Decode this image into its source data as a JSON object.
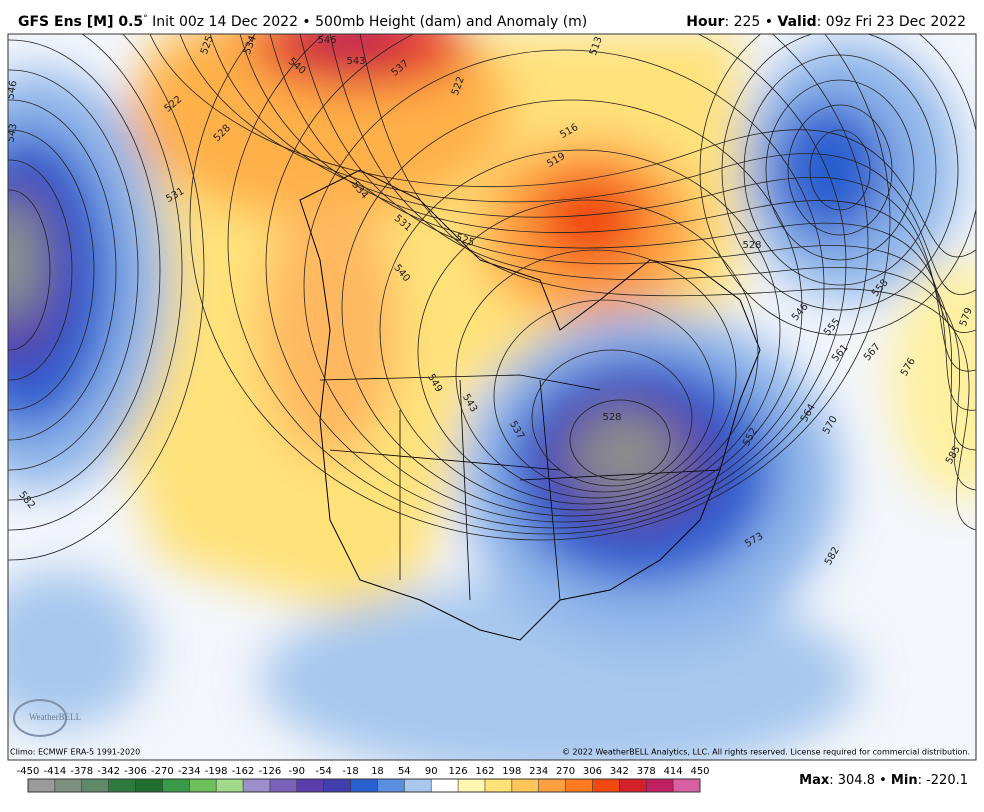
{
  "header": {
    "left": [
      "GFS Ens [M] 0.5",
      "°",
      " Init 00z 14 Dec 2022 • 500mb Height (dam) and Anomaly (m)"
    ],
    "right": [
      "Hour",
      ": 225 • ",
      "Valid",
      ": 09z Fri 23 Dec 2022"
    ]
  },
  "map": {
    "contour_labels": [
      "525",
      "534",
      "546",
      "543",
      "540",
      "537",
      "522",
      "528",
      "522",
      "513",
      "516",
      "519",
      "531",
      "534",
      "531",
      "525",
      "540",
      "528",
      "546",
      "543",
      "549",
      "543",
      "537",
      "528",
      "552",
      "546",
      "555",
      "561",
      "567",
      "558",
      "564",
      "570",
      "573",
      "576",
      "579",
      "585",
      "582",
      "582"
    ],
    "logo": "WeatherBELL"
  },
  "footer": {
    "climo": "Climo: ECMWF ERA-5 1991-2020",
    "copyright": "© 2022 WeatherBELL Analytics, LLC. All rights reserved. License required for commercial distribution."
  },
  "colorbar": {
    "ticks": [
      -450,
      -414,
      -378,
      -342,
      -306,
      -270,
      -234,
      -198,
      -162,
      -126,
      -90,
      -54,
      -18,
      18,
      54,
      90,
      126,
      162,
      198,
      234,
      270,
      306,
      342,
      378,
      414,
      450
    ],
    "colors": [
      "#9a9a9a",
      "#7f8f7f",
      "#5f8a6a",
      "#2f7a3f",
      "#1f6e30",
      "#3a9a4a",
      "#6cbf5a",
      "#a2d98a",
      "#9c8ec8",
      "#7a62b8",
      "#5a3da8",
      "#3f3fb0",
      "#2a5fd0",
      "#5a8ee0",
      "#a8c8ee",
      "#ffffff",
      "#fff6b0",
      "#ffe27a",
      "#ffc45a",
      "#ffa040",
      "#ff7a20",
      "#f04a10",
      "#d4202a",
      "#c02060",
      "#d860a0"
    ],
    "stats": [
      "Max",
      ": 304.8 • ",
      "Min",
      ": -220.1"
    ]
  }
}
